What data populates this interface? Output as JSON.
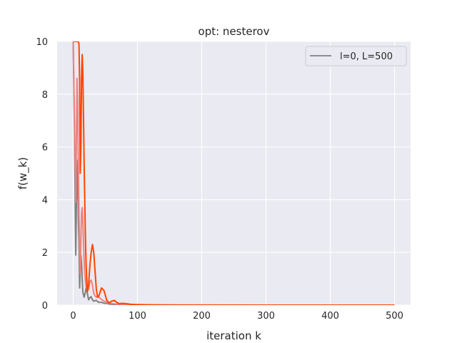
{
  "chart_data": {
    "type": "line",
    "title": "opt: nesterov",
    "xlabel": "iteration k",
    "ylabel": "f(w_k)",
    "xlim": [
      -25,
      525
    ],
    "ylim": [
      0,
      10
    ],
    "xticks": [
      0,
      100,
      200,
      300,
      400,
      500
    ],
    "yticks": [
      0,
      2,
      4,
      6,
      8,
      10
    ],
    "grid": true,
    "legend_position": "top-right",
    "legend_entries": [
      "l=0, L=500"
    ],
    "series": [
      {
        "name": "l=0, L=500",
        "color": "#808080",
        "in_legend": true,
        "x": [
          0,
          2,
          4,
          5,
          6,
          7,
          8,
          9,
          10,
          11,
          12,
          13,
          14,
          15,
          17,
          19,
          20,
          22,
          24,
          26,
          28,
          30,
          32,
          34,
          36,
          38,
          40,
          44,
          48,
          52,
          56,
          60,
          70,
          80,
          100,
          150,
          200,
          300,
          400,
          500
        ],
        "y": [
          10,
          6.5,
          1.9,
          3.9,
          4.5,
          5.5,
          3.2,
          2.4,
          0.65,
          1.4,
          1.9,
          1.6,
          1.0,
          0.5,
          0.3,
          0.5,
          0.65,
          0.45,
          0.2,
          0.28,
          0.32,
          0.2,
          0.15,
          0.17,
          0.18,
          0.14,
          0.1,
          0.11,
          0.07,
          0.07,
          0.04,
          0.03,
          0.02,
          0.01,
          0.005,
          0.002,
          0.001,
          0.0,
          0.0,
          0.0
        ]
      },
      {
        "name": "",
        "color": "#f08080",
        "in_legend": false,
        "x": [
          0,
          2,
          4,
          6,
          7,
          8,
          9,
          10,
          11,
          12,
          13,
          14,
          15,
          16,
          17,
          18,
          20,
          22,
          24,
          26,
          28,
          30,
          32,
          34,
          36,
          38,
          40,
          44,
          48,
          52,
          56,
          60,
          70,
          80,
          100,
          150,
          200,
          300,
          400,
          500
        ],
        "y": [
          10,
          7.0,
          3.9,
          8.6,
          7.5,
          5.5,
          3.5,
          2.0,
          1.2,
          2.5,
          3.5,
          3.7,
          3.2,
          2.4,
          1.7,
          1.2,
          0.7,
          0.55,
          0.6,
          0.9,
          0.95,
          0.75,
          0.45,
          0.35,
          0.3,
          0.35,
          0.3,
          0.22,
          0.15,
          0.12,
          0.08,
          0.06,
          0.03,
          0.02,
          0.01,
          0.003,
          0.001,
          0.0,
          0.0,
          0.0
        ]
      },
      {
        "name": "",
        "color": "#ff4500",
        "in_legend": false,
        "x": [
          0,
          2,
          4,
          6,
          8,
          9,
          10,
          11,
          12,
          13,
          14,
          15,
          16,
          17,
          18,
          19,
          20,
          22,
          24,
          26,
          28,
          30,
          32,
          34,
          36,
          38,
          40,
          44,
          48,
          52,
          56,
          60,
          64,
          68,
          72,
          76,
          80,
          90,
          100,
          120,
          150,
          200,
          300,
          400,
          500
        ],
        "y": [
          10,
          10,
          10,
          10,
          10,
          9.9,
          8.5,
          5.0,
          6.0,
          8.6,
          9.5,
          8.8,
          7.2,
          5.4,
          4.0,
          2.6,
          1.6,
          0.5,
          0.8,
          1.5,
          2.0,
          2.3,
          2.0,
          1.3,
          0.6,
          0.3,
          0.35,
          0.65,
          0.55,
          0.2,
          0.08,
          0.15,
          0.18,
          0.1,
          0.05,
          0.07,
          0.06,
          0.03,
          0.02,
          0.01,
          0.005,
          0.002,
          0.0,
          0.0,
          0.0
        ]
      }
    ]
  }
}
